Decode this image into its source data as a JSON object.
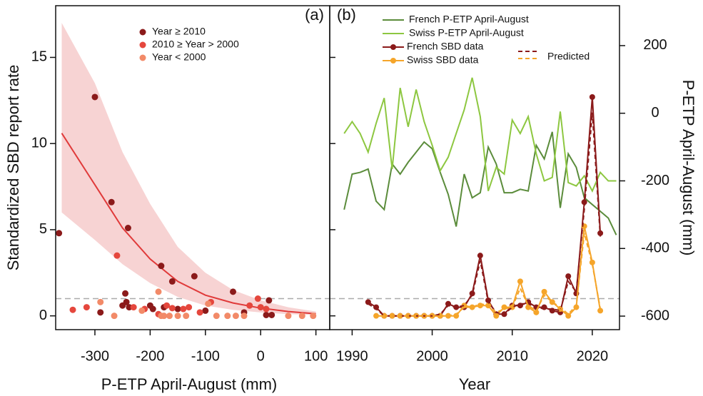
{
  "chart_data": [
    {
      "type": "scatter",
      "panel_label": "(a)",
      "x_label": "P-ETP April-August (mm)",
      "y_label": "Standardized SBD report rate",
      "xlim": [
        -371,
        125
      ],
      "ylim": [
        -0.8,
        18
      ],
      "xticks": [
        -300,
        -200,
        -100,
        0,
        100
      ],
      "yticks": [
        0,
        5,
        10,
        15
      ],
      "hline": 1,
      "series": [
        {
          "name": "Year ≥ 2010",
          "color": "#8b1a1a",
          "x": [
            -365,
            -300,
            -290,
            -270,
            -240,
            -245,
            -250,
            -243,
            -238,
            -200,
            -195,
            -180,
            -175,
            -160,
            -150,
            -120,
            -100,
            -50,
            -30,
            10,
            15,
            20
          ],
          "values": [
            4.8,
            12.7,
            0.2,
            6.6,
            5.1,
            1.3,
            0.6,
            0.8,
            0.5,
            0.6,
            0.4,
            2.9,
            0.5,
            2.0,
            0.4,
            2.3,
            0.3,
            1.4,
            0.2,
            0.05,
            0.9,
            0.05
          ]
        },
        {
          "name": "2010 ≥ Year > 2000",
          "color": "#e5473d",
          "x": [
            -340,
            -315,
            -260,
            -230,
            -210,
            -185,
            -170,
            -160,
            -140,
            -130,
            -110,
            -90,
            -20,
            -5,
            0,
            10
          ],
          "values": [
            0.35,
            0.5,
            3.5,
            0.5,
            0.4,
            0.1,
            0.6,
            0.45,
            0.4,
            0.5,
            0.2,
            0.8,
            0.6,
            1.0,
            0.5,
            0.4
          ]
        },
        {
          "name": "Year < 2000",
          "color": "#f28a68",
          "x": [
            -290,
            -265,
            -215,
            -185,
            -180,
            -175,
            -165,
            -150,
            -135,
            -95,
            -80,
            -60,
            -45,
            -30,
            50,
            75,
            95
          ],
          "values": [
            0.8,
            0,
            0.3,
            1.4,
            0,
            0,
            0,
            0,
            0,
            0.7,
            0,
            0,
            0,
            0,
            0,
            0,
            0
          ]
        }
      ],
      "fit": {
        "color": "#e03a3a",
        "band_color": "#f7d3d3",
        "x": [
          -360,
          -300,
          -250,
          -200,
          -150,
          -100,
          -50,
          0,
          50,
          100
        ],
        "values": [
          10.6,
          7.6,
          5.1,
          3.3,
          2.0,
          1.2,
          0.75,
          0.45,
          0.25,
          0.12
        ],
        "lower": [
          6,
          4.4,
          3.0,
          1.9,
          1.1,
          0.6,
          0.35,
          0.2,
          0.1,
          0.05
        ],
        "upper": [
          17,
          13.5,
          9.5,
          6.5,
          4,
          2.5,
          1.5,
          0.9,
          0.5,
          0.25
        ]
      }
    },
    {
      "type": "line",
      "panel_label": "(b)",
      "x_label": "Year",
      "y2_label": "P-ETP April-August (mm)",
      "xlim": [
        1987.2,
        2023.4
      ],
      "ylim": [
        -0.8,
        18
      ],
      "y2lim": [
        -640,
        318
      ],
      "xticks": [
        1990,
        2000,
        2010,
        2020
      ],
      "yticks": [
        0,
        5,
        10,
        15
      ],
      "y2ticks": [
        -600,
        -400,
        -200,
        0,
        200
      ],
      "hline": 1,
      "predicted_label": "Predicted",
      "series": [
        {
          "name": "French P-ETP April-August",
          "color": "#5b8c3b",
          "axis": "y2",
          "x": [
            1989,
            1990,
            1991,
            1992,
            1993,
            1994,
            1995,
            1996,
            1997,
            1998,
            1999,
            2000,
            2001,
            2002,
            2003,
            2004,
            2005,
            2006,
            2007,
            2008,
            2009,
            2010,
            2011,
            2012,
            2013,
            2014,
            2015,
            2016,
            2017,
            2018,
            2019,
            2020,
            2021,
            2022,
            2023
          ],
          "values": [
            -285,
            -180,
            -175,
            -165,
            -260,
            -285,
            -150,
            -180,
            -145,
            -115,
            -85,
            -105,
            -175,
            -240,
            -335,
            -180,
            -250,
            -235,
            -100,
            -150,
            -235,
            -235,
            -225,
            -230,
            -95,
            -135,
            -55,
            -280,
            -120,
            -160,
            -250,
            -270,
            -290,
            -310,
            -360
          ]
        },
        {
          "name": "Swiss P-ETP April-August",
          "color": "#8dc740",
          "axis": "y2",
          "x": [
            1989,
            1990,
            1991,
            1992,
            1993,
            1994,
            1995,
            1996,
            1997,
            1998,
            1999,
            2000,
            2001,
            2002,
            2003,
            2004,
            2005,
            2006,
            2007,
            2008,
            2009,
            2010,
            2011,
            2012,
            2013,
            2014,
            2015,
            2016,
            2017,
            2018,
            2019,
            2020,
            2021,
            2022,
            2023
          ],
          "values": [
            -60,
            -25,
            -60,
            -115,
            -30,
            45,
            -165,
            75,
            -40,
            70,
            -25,
            -95,
            -170,
            -130,
            -60,
            10,
            105,
            -10,
            -230,
            -160,
            -180,
            -20,
            -60,
            -10,
            -120,
            -200,
            -190,
            5,
            -205,
            -215,
            -185,
            -230,
            -175,
            -200,
            -200
          ]
        },
        {
          "name": "French SBD data",
          "color": "#8b1a1a",
          "marker": true,
          "x": [
            1992,
            1993,
            1994,
            1995,
            1996,
            1997,
            1998,
            1999,
            2000,
            2001,
            2002,
            2003,
            2004,
            2005,
            2006,
            2007,
            2008,
            2009,
            2010,
            2011,
            2012,
            2013,
            2014,
            2015,
            2016,
            2017,
            2018,
            2019,
            2020,
            2021
          ],
          "values": [
            0.8,
            0.5,
            0,
            0,
            0,
            0,
            0,
            0,
            0,
            0,
            0.7,
            0.5,
            0.5,
            1.3,
            3.5,
            0.9,
            0.1,
            0.1,
            0.6,
            0.6,
            0.8,
            0.5,
            0.5,
            0.3,
            0.2,
            2.3,
            1.3,
            6.6,
            12.7,
            4.8
          ]
        },
        {
          "name": "Swiss SBD data",
          "color": "#f5a52a",
          "marker": true,
          "x": [
            1993,
            1994,
            1995,
            1996,
            1997,
            1998,
            1999,
            2000,
            2001,
            2002,
            2003,
            2004,
            2005,
            2006,
            2007,
            2008,
            2009,
            2010,
            2011,
            2012,
            2013,
            2014,
            2015,
            2016,
            2017,
            2018,
            2019,
            2020,
            2021
          ],
          "values": [
            0,
            0,
            0,
            0,
            0,
            0,
            0,
            0,
            0,
            0,
            0,
            0.6,
            0.5,
            0.6,
            0.6,
            0,
            0.5,
            0.5,
            2.0,
            0.5,
            0.2,
            1.4,
            0.8,
            0.4,
            0,
            0.5,
            5.2,
            3.1,
            0.3
          ]
        },
        {
          "color": "#8b1a1a",
          "dashed": true,
          "x": [
            1992,
            1993,
            1994,
            1995,
            1996,
            1997,
            1998,
            1999,
            2000,
            2001,
            2002,
            2003,
            2004,
            2005,
            2006,
            2007,
            2008,
            2009,
            2010,
            2011,
            2012,
            2013,
            2014,
            2015,
            2016,
            2017,
            2018,
            2019,
            2020,
            2021
          ],
          "values": [
            0.7,
            0.4,
            0,
            0,
            0,
            0,
            0,
            0,
            0,
            0.1,
            0.6,
            0.5,
            0.6,
            1.2,
            3.2,
            0.8,
            0.2,
            0.1,
            0.5,
            0.7,
            0.7,
            0.5,
            0.4,
            0.4,
            0.3,
            2.0,
            1.4,
            6.2,
            11.8,
            4.6
          ]
        },
        {
          "color": "#f5a52a",
          "dashed": true,
          "x": [
            1993,
            1994,
            1995,
            1996,
            1997,
            1998,
            1999,
            2000,
            2001,
            2002,
            2003,
            2004,
            2005,
            2006,
            2007,
            2008,
            2009,
            2010,
            2011,
            2012,
            2013,
            2014,
            2015,
            2016,
            2017,
            2018,
            2019,
            2020,
            2021
          ],
          "values": [
            0,
            0,
            0,
            0,
            0,
            0,
            0,
            0,
            0,
            0,
            0.1,
            0.5,
            0.5,
            0.7,
            0.6,
            0.2,
            0.4,
            0.5,
            1.6,
            0.6,
            0.3,
            1.2,
            0.8,
            0.5,
            0.1,
            0.6,
            4.8,
            3.0,
            0.4
          ]
        }
      ]
    }
  ]
}
